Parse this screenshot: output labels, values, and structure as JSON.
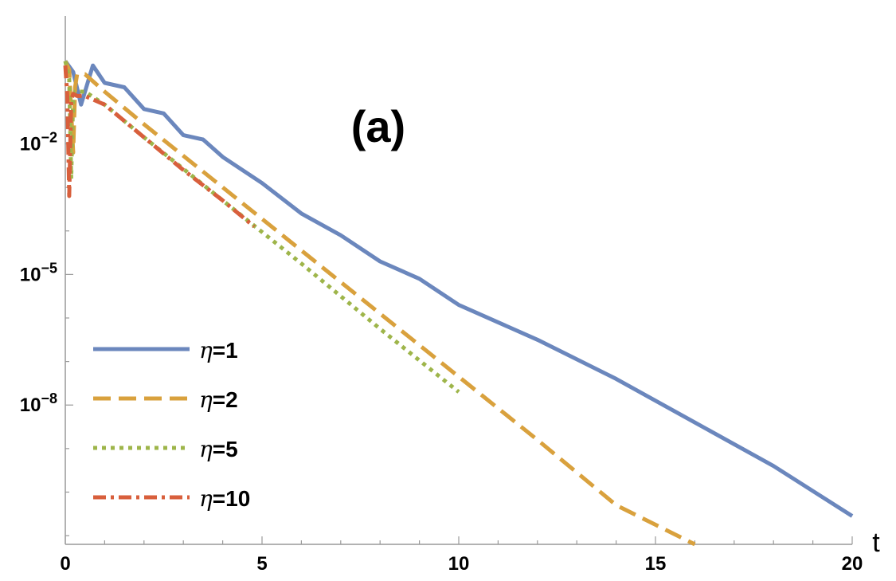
{
  "chart_data": {
    "type": "line",
    "panel_label": "(a)",
    "xlabel": "t",
    "ylabel": "",
    "xlim": [
      0,
      20
    ],
    "ylim_log10": [
      -11.2,
      -0.05
    ],
    "yscale": "log",
    "x_ticks": [
      0,
      5,
      10,
      15,
      20
    ],
    "x_tick_labels": [
      "0",
      "5",
      "10",
      "15",
      "20"
    ],
    "y_ticks_log10": [
      -2,
      -5,
      -8
    ],
    "y_tick_labels": [
      {
        "base": "10",
        "exp": "−2"
      },
      {
        "base": "10",
        "exp": "−5"
      },
      {
        "base": "10",
        "exp": "−8"
      }
    ],
    "legend_position": "bottom-left",
    "series": [
      {
        "name": "η=1",
        "legend_eta": "η",
        "legend_value": "=1",
        "color": "#6b87bd",
        "dash": "solid",
        "x": [
          0.0,
          0.2,
          0.4,
          0.7,
          1.0,
          1.5,
          2.0,
          2.5,
          3.0,
          3.5,
          4.0,
          5.0,
          6.0,
          7.0,
          8.0,
          9.0,
          10.0,
          12.0,
          14.0,
          16.0,
          18.0,
          20.0
        ],
        "log10_y": [
          -0.1,
          -0.35,
          -1.1,
          -0.2,
          -0.6,
          -0.7,
          -1.2,
          -1.3,
          -1.8,
          -1.9,
          -2.3,
          -2.9,
          -3.6,
          -4.1,
          -4.7,
          -5.1,
          -5.7,
          -6.5,
          -7.4,
          -8.4,
          -9.4,
          -10.55
        ]
      },
      {
        "name": "η=2",
        "legend_eta": "η",
        "legend_value": "=2",
        "color": "#d9a13d",
        "dash": "dashed",
        "x": [
          0.0,
          0.1,
          0.2,
          0.25,
          0.3,
          0.5,
          1.0,
          2.0,
          4.0,
          6.0,
          8.0,
          10.0,
          12.0,
          14.0,
          16.0
        ],
        "log10_y": [
          -0.1,
          -0.3,
          -2.2,
          -0.7,
          -0.4,
          -0.4,
          -0.8,
          -1.55,
          -3.0,
          -4.45,
          -5.9,
          -7.35,
          -8.8,
          -10.3,
          -11.2
        ]
      },
      {
        "name": "η=5",
        "legend_eta": "η",
        "legend_value": "=5",
        "color": "#9eb54a",
        "dash": "dotted",
        "x": [
          0.0,
          0.1,
          0.15,
          0.2,
          0.25,
          0.5,
          1.0,
          2.0,
          4.0,
          6.0,
          8.0,
          10.0
        ],
        "log10_y": [
          -0.1,
          -0.5,
          -2.8,
          -0.9,
          -0.8,
          -0.8,
          -1.1,
          -1.85,
          -3.3,
          -4.75,
          -6.25,
          -7.7
        ]
      },
      {
        "name": "η=10",
        "legend_eta": "η",
        "legend_value": "=10",
        "color": "#d85f3c",
        "dash": "dashdot",
        "x": [
          0.0,
          0.05,
          0.1,
          0.15,
          0.2,
          0.3,
          0.5,
          1.0,
          2.0,
          3.0,
          4.0,
          4.8
        ],
        "log10_y": [
          -0.2,
          -0.9,
          -3.2,
          -1.0,
          -0.85,
          -0.9,
          -0.9,
          -1.1,
          -1.85,
          -2.6,
          -3.3,
          -3.9
        ]
      }
    ]
  }
}
